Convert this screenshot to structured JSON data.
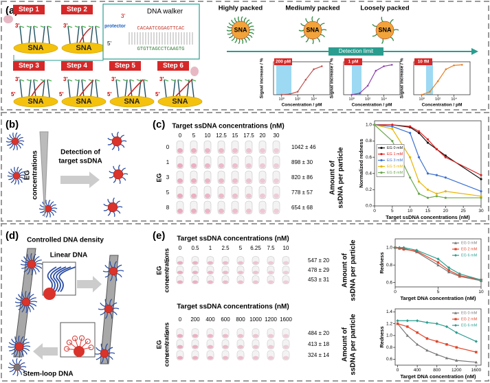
{
  "panel_a": {
    "label": "(a)",
    "steps": [
      "Step 1",
      "Step 2",
      "Step 3",
      "Step 4",
      "Step 5",
      "Step 6"
    ],
    "sna": "SNA",
    "walker_title": "DNA walker",
    "protector": "protector",
    "seq_top": "CACAATCGGAGTTCAC",
    "seq_bottom": "GTGTTAGCCTCAAGTG",
    "prime3": "3'",
    "prime5": "5'",
    "packing": [
      "Highly packed",
      "Mediumly packed",
      "Loosely packed"
    ],
    "detection_limit": "Detection limit",
    "plots": [
      {
        "type": "line",
        "badge": "200 pM",
        "ylabel": "Signal increase / %",
        "xlabel": "Concentration / pM",
        "xscale": "log",
        "xlim": [
          0.1,
          1000000
        ],
        "xticks": [
          {
            "value": 1,
            "label": "10⁰"
          },
          {
            "value": 100,
            "label": "10²"
          },
          {
            "value": 10000,
            "label": "10⁴"
          }
        ],
        "ylim": [
          0,
          110
        ],
        "x": [
          1,
          10,
          100,
          1000,
          10000,
          100000
        ],
        "series": [
          {
            "color": "#c0504d",
            "values": [
              0,
              2,
              10,
              50,
              85,
              95
            ]
          }
        ]
      },
      {
        "type": "line",
        "badge": "1 pM",
        "ylabel": "Signal increase / %",
        "xlabel": "Concentration / pM",
        "xscale": "log",
        "xlim": [
          0.1,
          1000000
        ],
        "xticks": [
          {
            "value": 1,
            "label": "10⁰"
          },
          {
            "value": 100,
            "label": "10²"
          },
          {
            "value": 10000,
            "label": "10⁴"
          }
        ],
        "ylim": [
          0,
          110
        ],
        "x": [
          1,
          10,
          100,
          1000,
          10000,
          100000
        ],
        "series": [
          {
            "color": "#8e44ad",
            "values": [
              0,
              5,
              30,
              80,
              95,
              100
            ]
          }
        ]
      },
      {
        "type": "line",
        "badge": "10 fM",
        "ylabel": "Signal increase / %",
        "xlabel": "Concentration / pM",
        "xscale": "log",
        "xlim": [
          0.1,
          1000000
        ],
        "xticks": [
          {
            "value": 1,
            "label": "10⁰"
          },
          {
            "value": 100,
            "label": "10²"
          },
          {
            "value": 10000,
            "label": "10⁴"
          }
        ],
        "ylim": [
          0,
          110
        ],
        "x": [
          1,
          10,
          100,
          1000,
          10000,
          100000
        ],
        "series": [
          {
            "color": "#e67e22",
            "values": [
              0,
              10,
              45,
              85,
              98,
              100
            ]
          }
        ]
      }
    ]
  },
  "panel_b": {
    "label": "(b)",
    "eg_title": [
      "EG",
      "concentrations"
    ],
    "arrow_text": [
      "Detection of",
      "target ssDNA"
    ]
  },
  "panel_c": {
    "label": "(c)",
    "plate": {
      "title": "Target ssDNA concentrations (nM)",
      "columns": [
        "0",
        "5",
        "10",
        "12.5",
        "15",
        "17.5",
        "20",
        "30"
      ],
      "row_title": [
        "EG"
      ],
      "rows": [
        "0",
        "1",
        "3",
        "5",
        "8"
      ],
      "amounts": [
        "1042 ± 46",
        "898 ± 30",
        "820 ± 86",
        "778 ± 57",
        "654 ± 68"
      ],
      "amount_title": [
        "Amount of",
        "ssDNA per particle"
      ]
    },
    "chart": {
      "type": "line",
      "xlabel": "Target ssDNA concentrations (nM)",
      "ylabel": "Normalized redness",
      "x": [
        0,
        5,
        10,
        12.5,
        15,
        17.5,
        20,
        30
      ],
      "xlim": [
        0,
        30
      ],
      "xticks": [
        0,
        5,
        10,
        15,
        20,
        25,
        30
      ],
      "ylim": [
        0,
        1.05
      ],
      "yticks": [
        {
          "value": 0,
          "label": "0.0"
        },
        0.2,
        0.4,
        0.6,
        0.8,
        {
          "value": 1,
          "label": "1.0"
        }
      ],
      "legend": "center left",
      "series": [
        {
          "name": "EG 0 mM",
          "color": "#111111",
          "marker": "circle",
          "values": [
            1.0,
            1.0,
            0.97,
            0.9,
            0.78,
            0.7,
            0.62,
            0.33
          ]
        },
        {
          "name": "EG 1 mM",
          "color": "#e02020",
          "marker": "circle",
          "values": [
            1.0,
            1.0,
            0.98,
            0.92,
            0.82,
            0.7,
            0.6,
            0.38
          ]
        },
        {
          "name": "EG 3 mM",
          "color": "#3b6fd1",
          "marker": "circle",
          "values": [
            1.0,
            0.98,
            0.9,
            0.6,
            0.4,
            0.38,
            0.35,
            0.18
          ]
        },
        {
          "name": "EG 5 mM",
          "color": "#e8b400",
          "marker": "circle",
          "values": [
            1.0,
            0.95,
            0.6,
            0.3,
            0.2,
            0.15,
            0.18,
            0.12
          ]
        },
        {
          "name": "EG 8 mM",
          "color": "#6aa84f",
          "marker": "circle",
          "values": [
            1.0,
            0.8,
            0.35,
            0.15,
            0.1,
            0.12,
            0.1,
            0.1
          ]
        }
      ]
    }
  },
  "panel_d": {
    "label": "(d)",
    "title": "Controlled DNA density",
    "linear": "Linear DNA",
    "stem": "Stem-loop DNA"
  },
  "panel_e": {
    "label": "(e)",
    "tables": [
      {
        "title": "Target ssDNA concentrations (nM)",
        "columns": [
          "0",
          "0.5",
          "1",
          "2.5",
          "5",
          "6.25",
          "7.5",
          "10"
        ],
        "row_title": [
          "EG",
          "concentrations"
        ],
        "rows": [
          "0",
          "2",
          "6"
        ],
        "amounts": [
          "547 ± 20",
          "478 ± 29",
          "453 ± 31"
        ],
        "amount_title": [
          "Amount of",
          "ssDNA per particle"
        ]
      },
      {
        "title": "Target ssDNA concentrations (nM)",
        "columns": [
          "0",
          "200",
          "400",
          "600",
          "800",
          "1000",
          "1200",
          "1600"
        ],
        "row_title": [
          "EG",
          "concentrations"
        ],
        "rows": [
          "0",
          "2",
          "6"
        ],
        "amounts": [
          "484 ± 20",
          "413 ± 18",
          "324 ± 14"
        ],
        "amount_title": [
          "Amount of",
          "ssDNA per particle"
        ]
      }
    ],
    "charts": [
      {
        "type": "line",
        "xlabel": "Target DNA concentration (nM)",
        "ylabel": "Redness",
        "x": [
          0,
          0.5,
          1,
          2.5,
          5,
          6.25,
          7.5,
          10
        ],
        "xlim": [
          0,
          10
        ],
        "xticks": [
          0,
          5,
          10
        ],
        "ylim": [
          0.55,
          1.1
        ],
        "yticks": [
          0.6,
          0.8,
          {
            "value": 1,
            "label": "1.0"
          }
        ],
        "legend": "upper right",
        "series": [
          {
            "name": "EG 0 mM",
            "color": "#777777",
            "marker": "triangle",
            "values": [
              1.0,
              1.0,
              0.99,
              0.95,
              0.8,
              0.72,
              0.67,
              0.62
            ]
          },
          {
            "name": "EG 2 mM",
            "color": "#e0452b",
            "marker": "square",
            "values": [
              1.0,
              0.99,
              0.98,
              0.96,
              0.83,
              0.74,
              0.68,
              0.63
            ]
          },
          {
            "name": "EG 6 mM",
            "color": "#2a9d8f",
            "marker": "diamond",
            "values": [
              1.0,
              1.0,
              1.0,
              0.97,
              0.87,
              0.77,
              0.7,
              0.63
            ]
          }
        ]
      },
      {
        "type": "line",
        "xlabel": "Target DNA concentration (nM)",
        "ylabel": "Redness",
        "x": [
          0,
          200,
          400,
          600,
          800,
          1000,
          1200,
          1600
        ],
        "xlim": [
          -50,
          1700
        ],
        "xticks": [
          0,
          400,
          800,
          1200,
          1600
        ],
        "ylim": [
          0.5,
          1.45
        ],
        "yticks": [
          0.6,
          0.8,
          {
            "value": 1,
            "label": "1.0"
          },
          1.2,
          1.4
        ],
        "legend": "upper right",
        "series": [
          {
            "name": "EG 0 mM",
            "color": "#777777",
            "marker": "triangle",
            "values": [
              1.2,
              1.0,
              0.85,
              0.75,
              0.68,
              0.62,
              0.58,
              0.55
            ]
          },
          {
            "name": "EG 2 mM",
            "color": "#e0452b",
            "marker": "square",
            "values": [
              1.2,
              1.15,
              1.05,
              0.95,
              0.9,
              0.85,
              0.8,
              0.72
            ]
          },
          {
            "name": "EG 6 mM",
            "color": "#2a9d8f",
            "marker": "diamond",
            "values": [
              1.25,
              1.25,
              1.25,
              1.22,
              1.2,
              1.15,
              1.05,
              0.9
            ]
          }
        ]
      }
    ]
  }
}
